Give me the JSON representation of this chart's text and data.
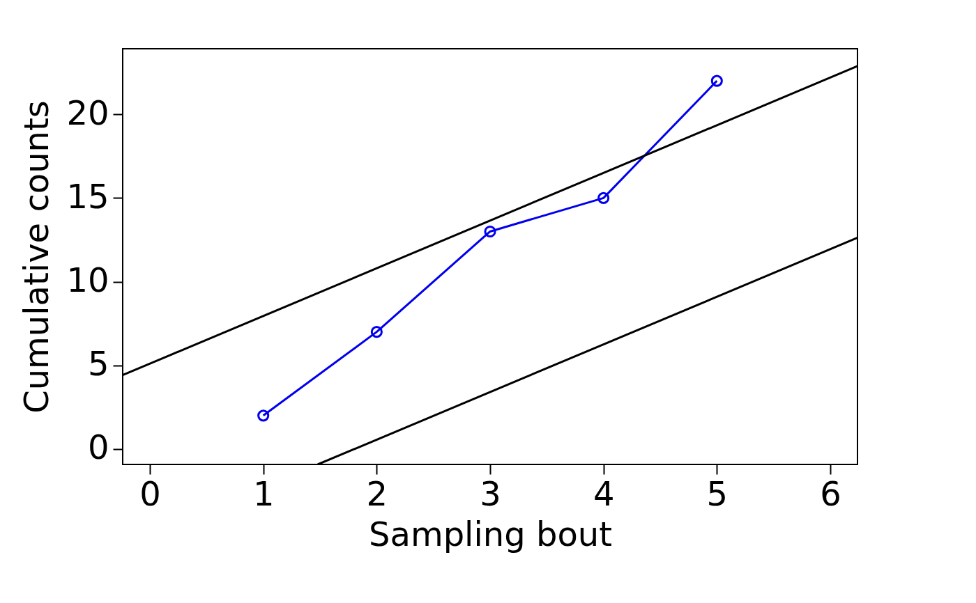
{
  "chart_data": {
    "type": "line",
    "xlabel": "Sampling bout",
    "ylabel": "Cumulative counts",
    "series": [
      {
        "color": "#0000ee",
        "x": [
          1,
          2,
          3,
          4,
          5
        ],
        "values": [
          2,
          7,
          13,
          15,
          22
        ],
        "marker": "circle"
      },
      {
        "type": "line",
        "color": "#000000",
        "x": [
          -0.24,
          6.24
        ],
        "values": [
          4.42,
          22.88
        ],
        "marker": "none"
      },
      {
        "type": "line",
        "color": "#000000",
        "x": [
          1.48,
          6.24
        ],
        "values": [
          -0.92,
          12.63
        ],
        "marker": "none"
      }
    ],
    "xlim": [
      -0.24,
      6.24
    ],
    "ylim": [
      -0.92,
      23.92
    ],
    "xticks": [
      0,
      1,
      2,
      3,
      4,
      5,
      6
    ],
    "yticks": [
      0,
      5,
      10,
      15,
      20
    ],
    "grid": false,
    "legend": false,
    "line_style": "solid"
  }
}
